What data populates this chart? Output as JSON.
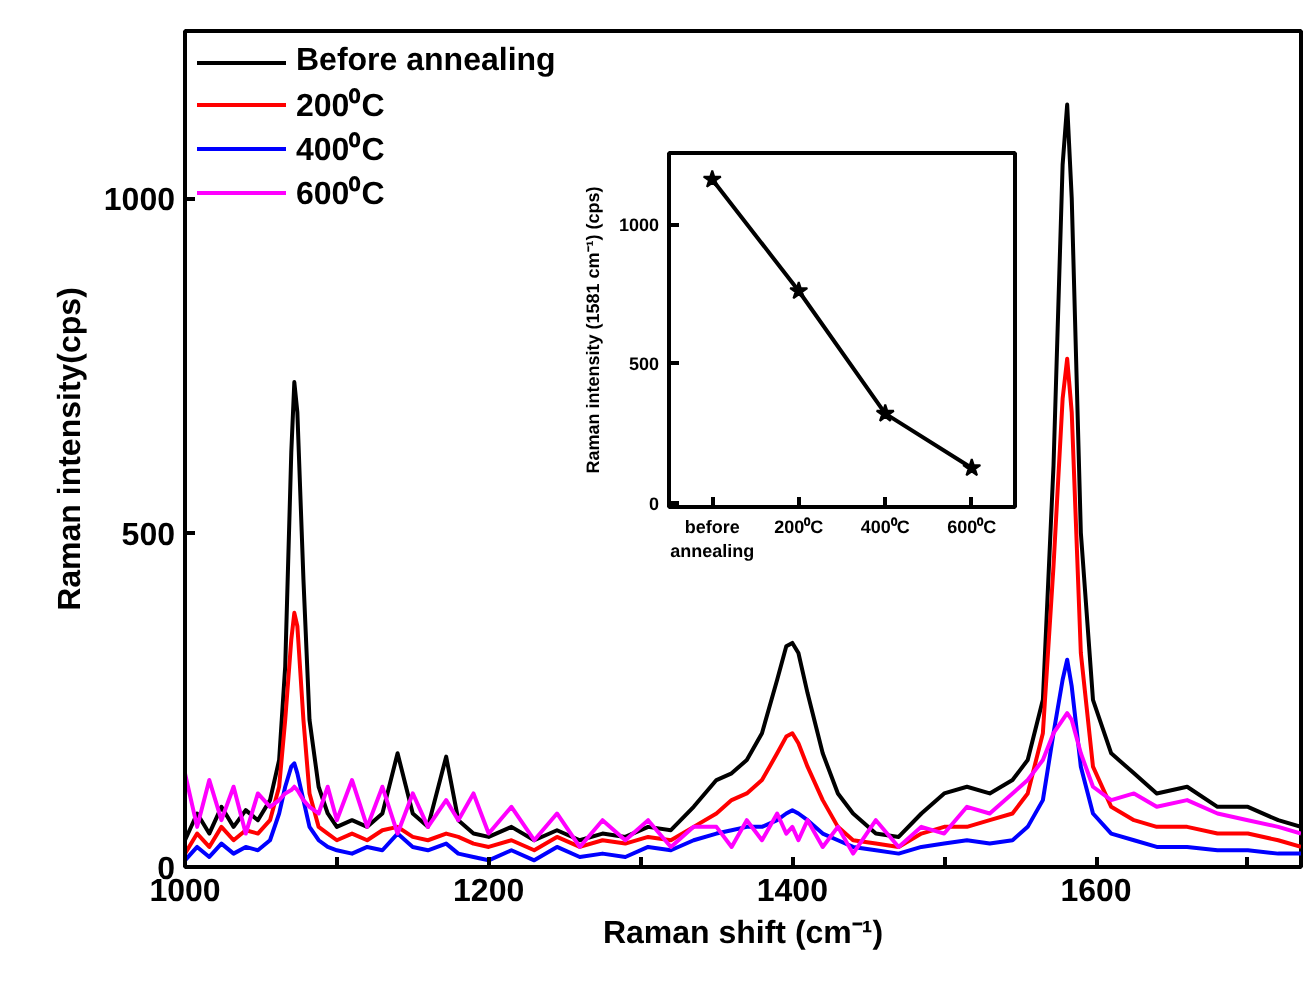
{
  "chart_data": [
    {
      "type": "line",
      "xlabel": "Raman shift (cm⁻¹)",
      "ylabel": "Raman intensity(cps)",
      "xlim": [
        1000,
        1735
      ],
      "xticks": [
        1000,
        {
          "value": 1100,
          "label": null
        },
        1200,
        {
          "value": 1300,
          "label": null
        },
        1400,
        {
          "value": 1500,
          "label": null
        },
        1600,
        {
          "value": 1700,
          "label": null
        }
      ],
      "ylim": [
        0,
        1250
      ],
      "yticks": [
        0,
        500,
        1000
      ],
      "grid": false,
      "legend": "top left",
      "marker": "none",
      "line_style": "solid",
      "x": [
        1000,
        1008,
        1016,
        1024,
        1032,
        1040,
        1048,
        1056,
        1062,
        1066,
        1070,
        1072,
        1074,
        1078,
        1082,
        1088,
        1094,
        1100,
        1110,
        1120,
        1130,
        1140,
        1150,
        1160,
        1172,
        1180,
        1190,
        1200,
        1215,
        1230,
        1245,
        1260,
        1275,
        1290,
        1305,
        1320,
        1335,
        1350,
        1360,
        1370,
        1380,
        1390,
        1396,
        1400,
        1404,
        1410,
        1420,
        1430,
        1440,
        1455,
        1470,
        1485,
        1500,
        1515,
        1530,
        1545,
        1555,
        1565,
        1572,
        1578,
        1581,
        1584,
        1590,
        1598,
        1610,
        1625,
        1640,
        1660,
        1680,
        1700,
        1720,
        1735
      ],
      "series": [
        {
          "name": "Before annealing",
          "color": "#000000",
          "values": [
            40,
            80,
            50,
            90,
            60,
            85,
            70,
            100,
            160,
            300,
            620,
            725,
            680,
            430,
            220,
            120,
            80,
            60,
            70,
            60,
            80,
            170,
            80,
            60,
            165,
            70,
            50,
            45,
            60,
            40,
            55,
            40,
            50,
            45,
            60,
            55,
            90,
            130,
            140,
            160,
            200,
            280,
            330,
            335,
            320,
            260,
            170,
            110,
            80,
            50,
            45,
            80,
            110,
            120,
            110,
            130,
            160,
            250,
            600,
            1050,
            1140,
            1000,
            500,
            250,
            170,
            140,
            110,
            120,
            90,
            90,
            70,
            60
          ]
        },
        {
          "name": "200⁰C",
          "color": "#ff0000",
          "values": [
            20,
            50,
            30,
            60,
            40,
            55,
            50,
            70,
            120,
            220,
            340,
            380,
            360,
            220,
            110,
            60,
            50,
            40,
            50,
            40,
            55,
            60,
            45,
            40,
            50,
            45,
            35,
            30,
            40,
            25,
            45,
            30,
            40,
            35,
            45,
            40,
            60,
            80,
            100,
            110,
            130,
            170,
            195,
            200,
            185,
            150,
            100,
            60,
            40,
            35,
            30,
            50,
            60,
            60,
            70,
            80,
            110,
            200,
            450,
            700,
            760,
            680,
            320,
            150,
            90,
            70,
            60,
            60,
            50,
            50,
            40,
            30
          ]
        },
        {
          "name": "400⁰C",
          "color": "#0000ff",
          "values": [
            10,
            30,
            15,
            35,
            20,
            30,
            25,
            40,
            80,
            120,
            150,
            155,
            140,
            100,
            60,
            40,
            30,
            25,
            20,
            30,
            25,
            50,
            30,
            25,
            35,
            20,
            15,
            10,
            25,
            10,
            30,
            15,
            20,
            15,
            30,
            25,
            40,
            50,
            55,
            60,
            60,
            70,
            80,
            85,
            80,
            70,
            50,
            40,
            30,
            25,
            20,
            30,
            35,
            40,
            35,
            40,
            60,
            100,
            200,
            280,
            310,
            270,
            150,
            80,
            50,
            40,
            30,
            30,
            25,
            25,
            20,
            20
          ]
        },
        {
          "name": "600⁰C",
          "color": "#ff00ff",
          "values": [
            140,
            60,
            130,
            70,
            120,
            50,
            110,
            90,
            100,
            110,
            115,
            120,
            115,
            100,
            90,
            80,
            120,
            70,
            130,
            60,
            120,
            50,
            110,
            60,
            100,
            70,
            110,
            50,
            90,
            40,
            80,
            30,
            70,
            40,
            70,
            30,
            60,
            60,
            30,
            70,
            40,
            80,
            50,
            60,
            40,
            70,
            30,
            60,
            20,
            70,
            30,
            60,
            50,
            90,
            80,
            110,
            130,
            160,
            200,
            220,
            230,
            220,
            170,
            120,
            100,
            110,
            90,
            100,
            80,
            70,
            60,
            50
          ]
        }
      ]
    },
    {
      "type": "line",
      "ylabel": "Raman intensity (1581 cm⁻¹) (cps)",
      "categories": [
        "before annealing",
        "200⁰C",
        "400⁰C",
        "600⁰C"
      ],
      "ylim": [
        -15,
        1255
      ],
      "yticks": [
        0,
        500,
        1000
      ],
      "grid": false,
      "legend": false,
      "marker": "star",
      "line_style": "solid",
      "series": [
        {
          "color": "#000000",
          "values": [
            1160,
            760,
            320,
            125
          ]
        }
      ]
    }
  ]
}
